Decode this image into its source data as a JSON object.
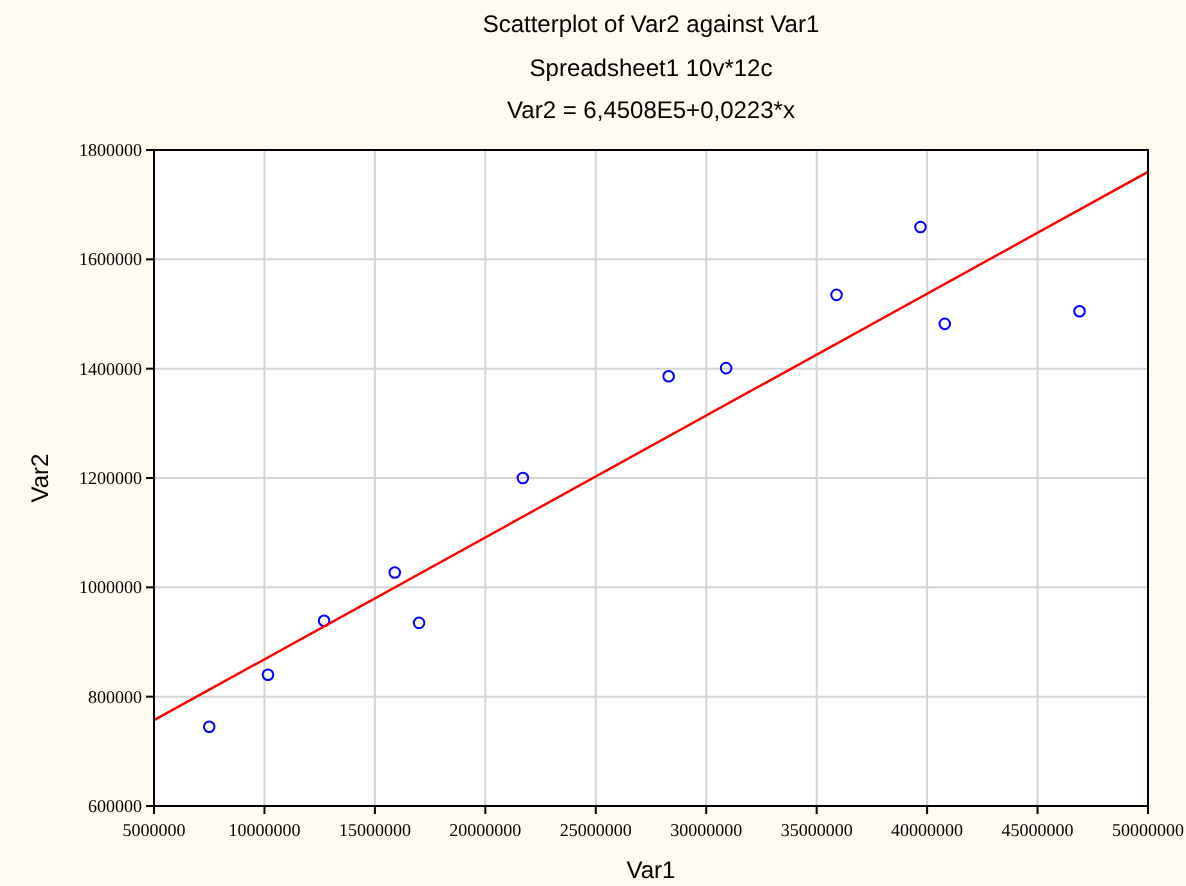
{
  "chart_data": {
    "type": "scatter",
    "title": "Scatterplot of Var2 against Var1",
    "subtitle": "Spreadsheet1 10v*12c\nVar2 = 6,4508E5+0,0223*x",
    "xlabel": "Var1",
    "ylabel": "Var2",
    "xlim": [
      5000000,
      50000000
    ],
    "xticks": [
      5000000,
      10000000,
      15000000,
      20000000,
      25000000,
      30000000,
      35000000,
      40000000,
      45000000,
      50000000
    ],
    "ylim": [
      600000,
      1800000
    ],
    "yticks": [
      600000,
      800000,
      1000000,
      1200000,
      1400000,
      1600000,
      1800000
    ],
    "grid": true,
    "series": [
      {
        "marker": "circle",
        "color": "#0000ff",
        "x": [
          7500000,
          10160000,
          12700000,
          15900000,
          17000000,
          21700000,
          28300000,
          30900000,
          35900000,
          39700000,
          40800000,
          46900000
        ],
        "values": [
          745000,
          840000,
          939000,
          1027000,
          935000,
          1200000,
          1386000,
          1401000,
          1535000,
          1659000,
          1482000,
          1505000
        ]
      },
      {
        "type": "line",
        "color": "#ff0000",
        "x": [
          5000000,
          50000000
        ],
        "values": [
          757000,
          1760000
        ]
      }
    ]
  }
}
